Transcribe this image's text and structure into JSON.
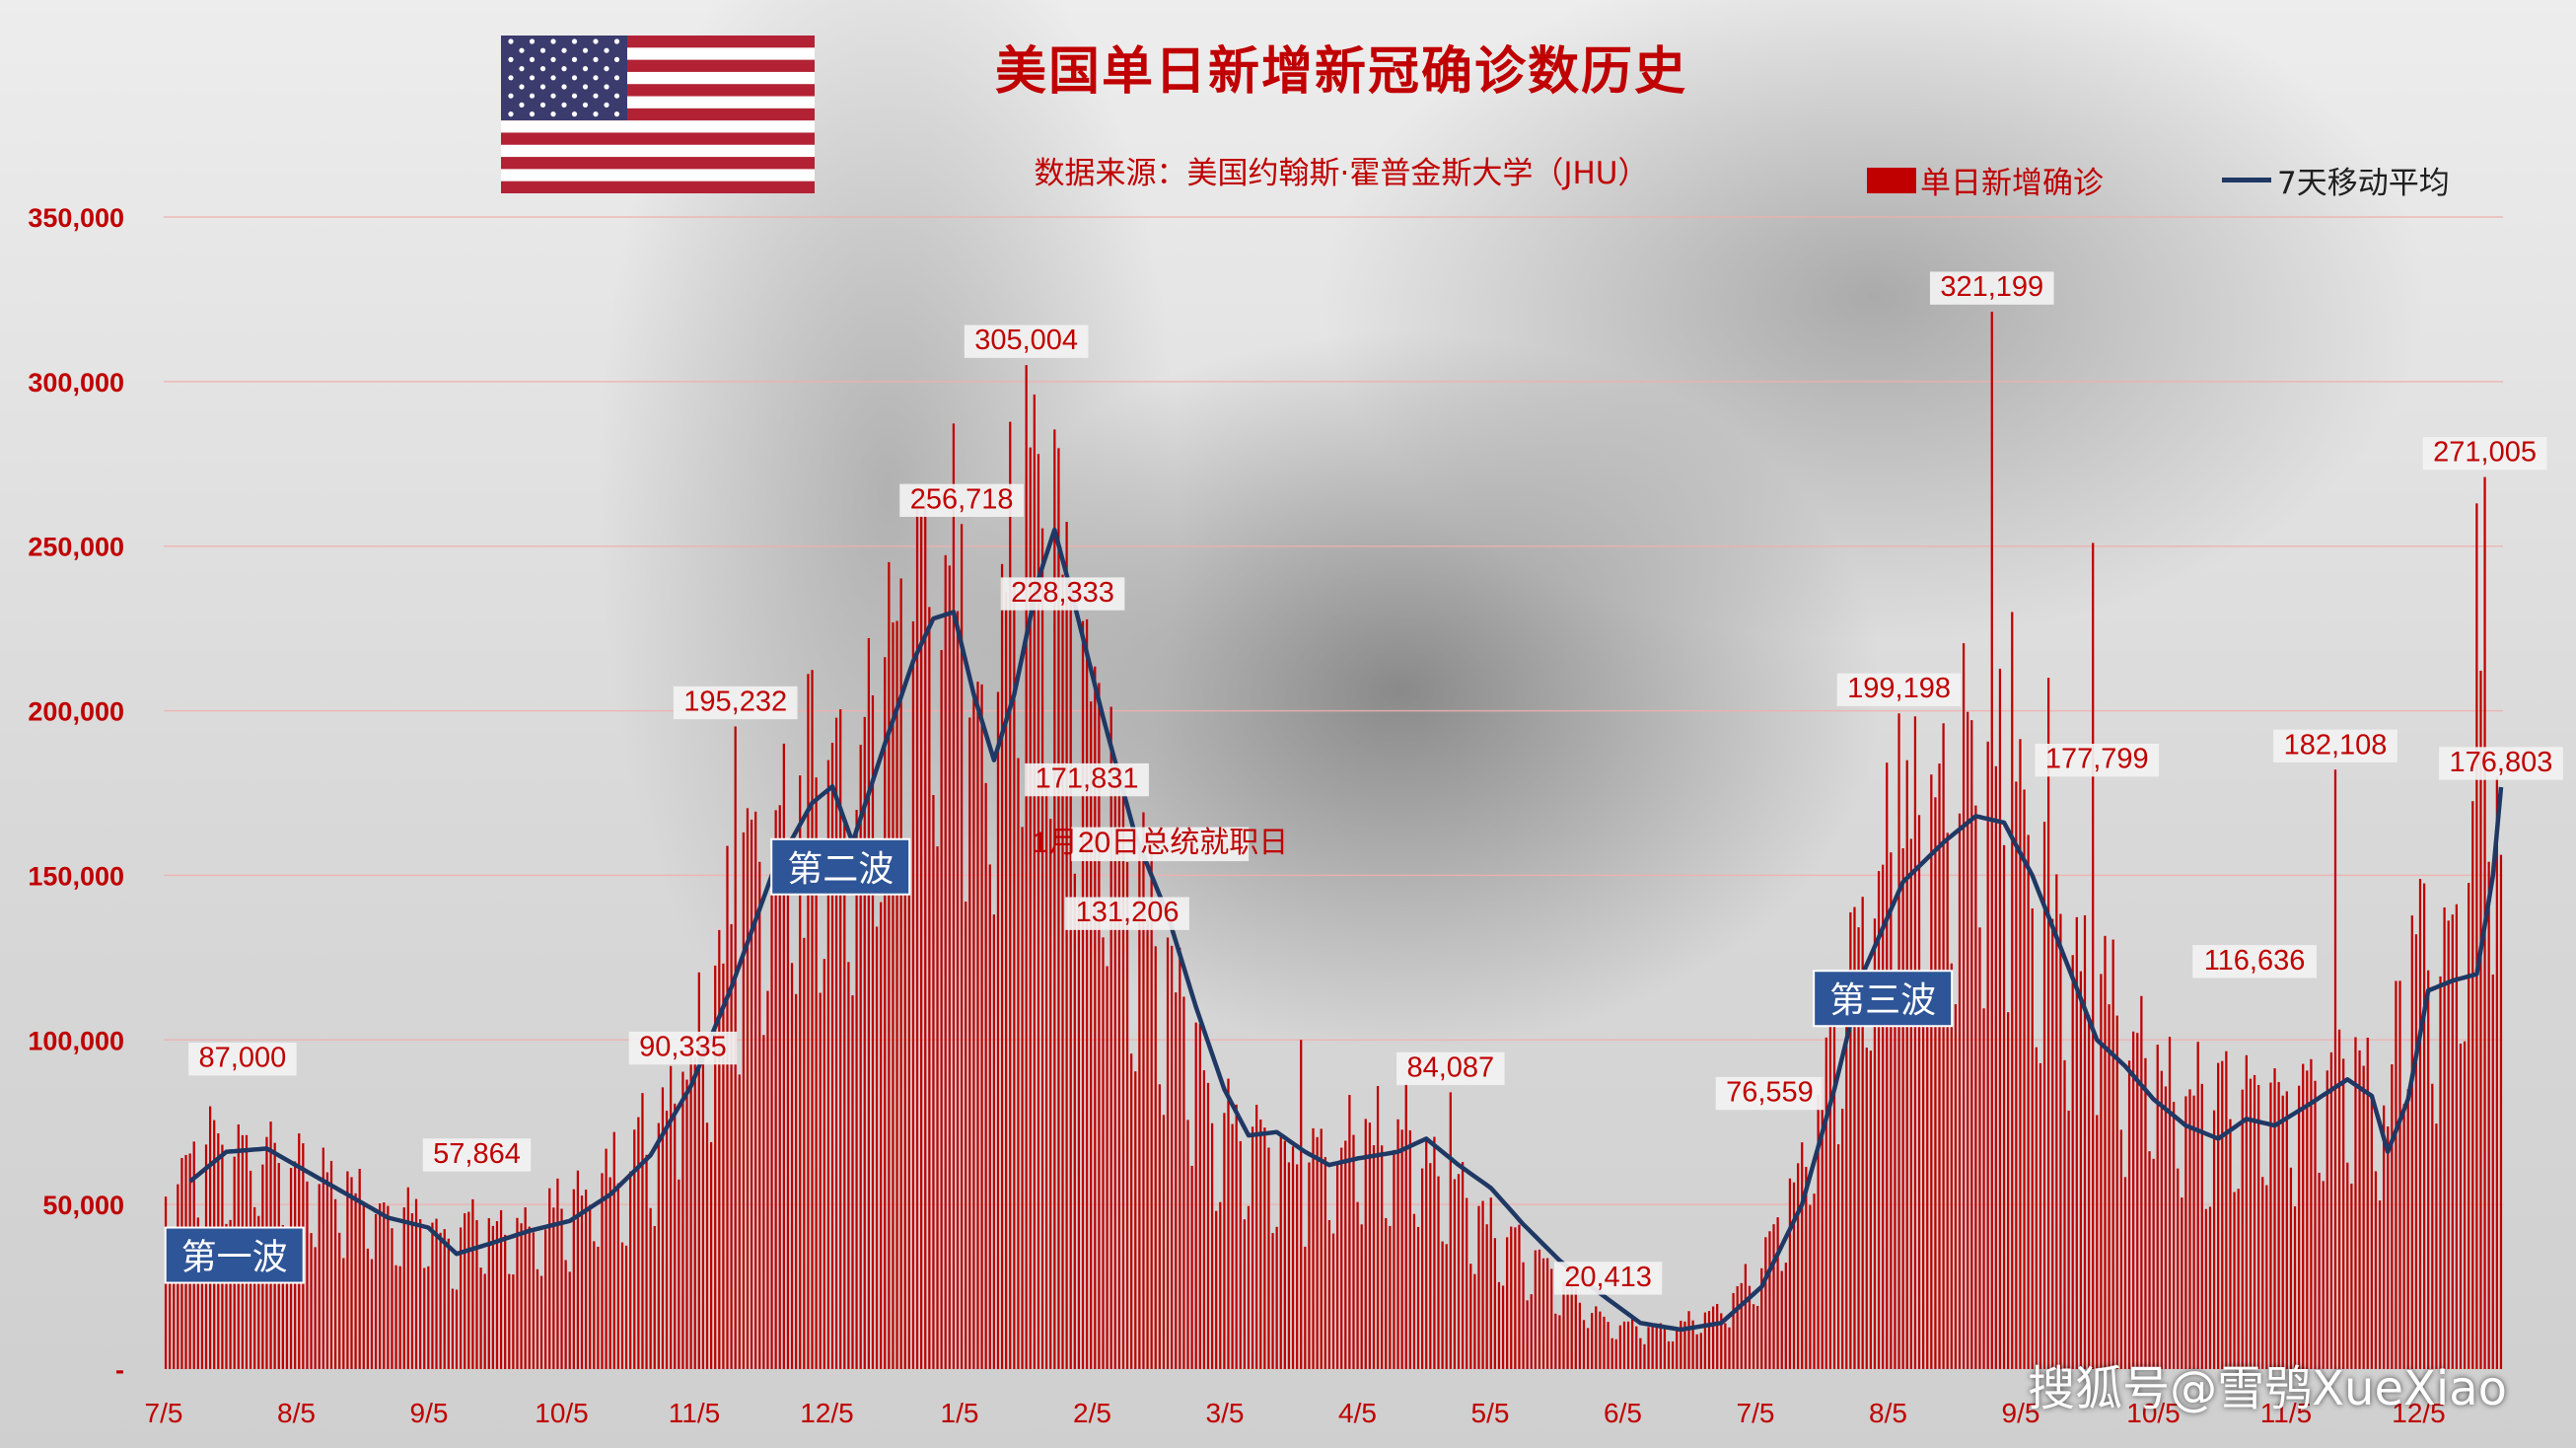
{
  "title": "美国单日新增新冠确诊数历史",
  "subtitle": "数据来源：美国约翰斯·霍普金斯大学（JHU）",
  "watermark": "搜狐号@雪鸮XueXiao",
  "colors": {
    "bar": "#c00000",
    "line": "#1f3864",
    "label_text": "#c00000",
    "wave_box": "#2e5597",
    "grid": "#f0b0b0"
  },
  "chart_data": {
    "type": "bar",
    "title": "美国单日新增新冠确诊数历史",
    "series": [
      {
        "name": "单日新增确诊",
        "type": "bar"
      },
      {
        "name": "7天移动平均",
        "type": "line"
      }
    ],
    "x_tick_labels": [
      "7/5",
      "8/5",
      "9/5",
      "10/5",
      "11/5",
      "12/5",
      "1/5",
      "2/5",
      "3/5",
      "4/5",
      "5/5",
      "6/5",
      "7/5",
      "8/5",
      "9/5",
      "10/5",
      "11/5",
      "12/5"
    ],
    "y_tick_labels": [
      "-",
      "50,000",
      "100,000",
      "150,000",
      "200,000",
      "250,000",
      "300,000",
      "350,000"
    ],
    "ylim": [
      0,
      350000
    ],
    "grid": true,
    "legend_position": "top-right",
    "daily_anchors": [
      [
        0,
        50000
      ],
      [
        10,
        66000
      ],
      [
        25,
        62000
      ],
      [
        40,
        55000
      ],
      [
        55,
        45000
      ],
      [
        65,
        43000
      ],
      [
        70,
        36000
      ],
      [
        80,
        42000
      ],
      [
        90,
        40000
      ],
      [
        100,
        47000
      ],
      [
        110,
        55000
      ],
      [
        120,
        68000
      ],
      [
        130,
        90000
      ],
      [
        140,
        130000
      ],
      [
        150,
        160000
      ],
      [
        160,
        176000
      ],
      [
        170,
        155000
      ],
      [
        180,
        205000
      ],
      [
        190,
        225000
      ],
      [
        195,
        218000
      ],
      [
        202,
        180000
      ],
      [
        210,
        240000
      ],
      [
        215,
        270000
      ],
      [
        222,
        235000
      ],
      [
        230,
        195000
      ],
      [
        238,
        150000
      ],
      [
        245,
        128000
      ],
      [
        252,
        100000
      ],
      [
        260,
        72000
      ],
      [
        270,
        66000
      ],
      [
        278,
        58000
      ],
      [
        285,
        60000
      ],
      [
        295,
        65000
      ],
      [
        305,
        68000
      ],
      [
        315,
        58000
      ],
      [
        325,
        46000
      ],
      [
        335,
        34000
      ],
      [
        345,
        25000
      ],
      [
        355,
        15000
      ],
      [
        365,
        12000
      ],
      [
        375,
        13000
      ],
      [
        385,
        17000
      ],
      [
        395,
        30000
      ],
      [
        405,
        60000
      ],
      [
        415,
        110000
      ],
      [
        425,
        140000
      ],
      [
        435,
        160000
      ],
      [
        445,
        175000
      ],
      [
        455,
        165000
      ],
      [
        465,
        140000
      ],
      [
        475,
        115000
      ],
      [
        485,
        95000
      ],
      [
        495,
        82000
      ],
      [
        505,
        75000
      ],
      [
        515,
        78000
      ],
      [
        525,
        76000
      ],
      [
        535,
        90000
      ],
      [
        545,
        90000
      ],
      [
        550,
        70000
      ],
      [
        555,
        125000
      ],
      [
        565,
        118000
      ],
      [
        572,
        150000
      ],
      [
        575,
        205000
      ],
      [
        578,
        130000
      ]
    ],
    "moving_average_anchors": [
      [
        6,
        57000
      ],
      [
        15,
        66000
      ],
      [
        25,
        67000
      ],
      [
        35,
        60000
      ],
      [
        45,
        53000
      ],
      [
        55,
        46000
      ],
      [
        65,
        43000
      ],
      [
        72,
        35000
      ],
      [
        80,
        38000
      ],
      [
        90,
        42000
      ],
      [
        100,
        45000
      ],
      [
        110,
        53000
      ],
      [
        120,
        65000
      ],
      [
        130,
        86000
      ],
      [
        140,
        116000
      ],
      [
        150,
        150000
      ],
      [
        160,
        172000
      ],
      [
        165,
        177000
      ],
      [
        170,
        160000
      ],
      [
        178,
        190000
      ],
      [
        185,
        215000
      ],
      [
        190,
        228000
      ],
      [
        195,
        230000
      ],
      [
        200,
        205000
      ],
      [
        205,
        185000
      ],
      [
        210,
        205000
      ],
      [
        216,
        240000
      ],
      [
        220,
        255000
      ],
      [
        225,
        232000
      ],
      [
        232,
        198000
      ],
      [
        240,
        162000
      ],
      [
        248,
        138000
      ],
      [
        255,
        110000
      ],
      [
        262,
        85000
      ],
      [
        268,
        71000
      ],
      [
        275,
        72000
      ],
      [
        282,
        66000
      ],
      [
        288,
        62000
      ],
      [
        295,
        64000
      ],
      [
        305,
        66000
      ],
      [
        312,
        70000
      ],
      [
        320,
        62000
      ],
      [
        328,
        55000
      ],
      [
        336,
        44000
      ],
      [
        345,
        33000
      ],
      [
        355,
        23000
      ],
      [
        365,
        14000
      ],
      [
        375,
        12000
      ],
      [
        385,
        14000
      ],
      [
        395,
        25000
      ],
      [
        405,
        50000
      ],
      [
        413,
        85000
      ],
      [
        420,
        120000
      ],
      [
        430,
        148000
      ],
      [
        440,
        160000
      ],
      [
        448,
        168000
      ],
      [
        455,
        166000
      ],
      [
        462,
        150000
      ],
      [
        470,
        125000
      ],
      [
        478,
        100000
      ],
      [
        485,
        92000
      ],
      [
        492,
        82000
      ],
      [
        500,
        74000
      ],
      [
        508,
        70000
      ],
      [
        515,
        76000
      ],
      [
        522,
        74000
      ],
      [
        530,
        80000
      ],
      [
        540,
        88000
      ],
      [
        546,
        83000
      ],
      [
        550,
        66000
      ],
      [
        555,
        82000
      ],
      [
        560,
        115000
      ],
      [
        566,
        118000
      ],
      [
        572,
        120000
      ],
      [
        576,
        150000
      ],
      [
        578,
        176803
      ]
    ],
    "spikes": [
      [
        128,
        90335
      ],
      [
        141,
        195232
      ],
      [
        158,
        131000
      ],
      [
        164,
        185000
      ],
      [
        197,
        256718
      ],
      [
        213,
        305004
      ],
      [
        214,
        280000
      ],
      [
        216,
        278000
      ],
      [
        281,
        100000
      ],
      [
        318,
        84087
      ],
      [
        429,
        199198
      ],
      [
        452,
        321199
      ],
      [
        457,
        230000
      ],
      [
        466,
        210000
      ],
      [
        477,
        251000
      ],
      [
        537,
        182108
      ],
      [
        572,
        263000
      ],
      [
        574,
        271005
      ]
    ],
    "annotations": [
      {
        "text": "87,000",
        "day": 19,
        "value": 87000
      },
      {
        "text": "57,864",
        "day": 77,
        "value": 57864
      },
      {
        "text": "90,335",
        "day": 128,
        "value": 90335
      },
      {
        "text": "195,232",
        "day": 141,
        "value": 195232
      },
      {
        "text": "256,718",
        "day": 197,
        "value": 256718
      },
      {
        "text": "305,004",
        "day": 213,
        "value": 305004
      },
      {
        "text": "228,333",
        "day": 222,
        "value": 228333
      },
      {
        "text": "171,831",
        "day": 228,
        "value": 171831
      },
      {
        "text": "131,206",
        "day": 238,
        "value": 131206
      },
      {
        "text": "84,087",
        "day": 318,
        "value": 84087
      },
      {
        "text": "20,413",
        "day": 357,
        "value": 20413
      },
      {
        "text": "76,559",
        "day": 397,
        "value": 76559
      },
      {
        "text": "199,198",
        "day": 429,
        "value": 199198
      },
      {
        "text": "321,199",
        "day": 452,
        "value": 321199
      },
      {
        "text": "177,799",
        "day": 478,
        "value": 177799
      },
      {
        "text": "116,636",
        "day": 517,
        "value": 116636
      },
      {
        "text": "182,108",
        "day": 537,
        "value": 182108
      },
      {
        "text": "271,005",
        "day": 574,
        "value": 271005
      },
      {
        "text": "176,803",
        "day": 578,
        "value": 176803
      }
    ],
    "event_note": {
      "text": "1月20日总统就职日",
      "day": 229,
      "value": 157000
    },
    "waves": [
      {
        "text": "第一波",
        "day": 17,
        "value": 34000
      },
      {
        "text": "第二波",
        "day": 167,
        "value": 152000
      },
      {
        "text": "第三波",
        "day": 425,
        "value": 112000
      }
    ]
  }
}
